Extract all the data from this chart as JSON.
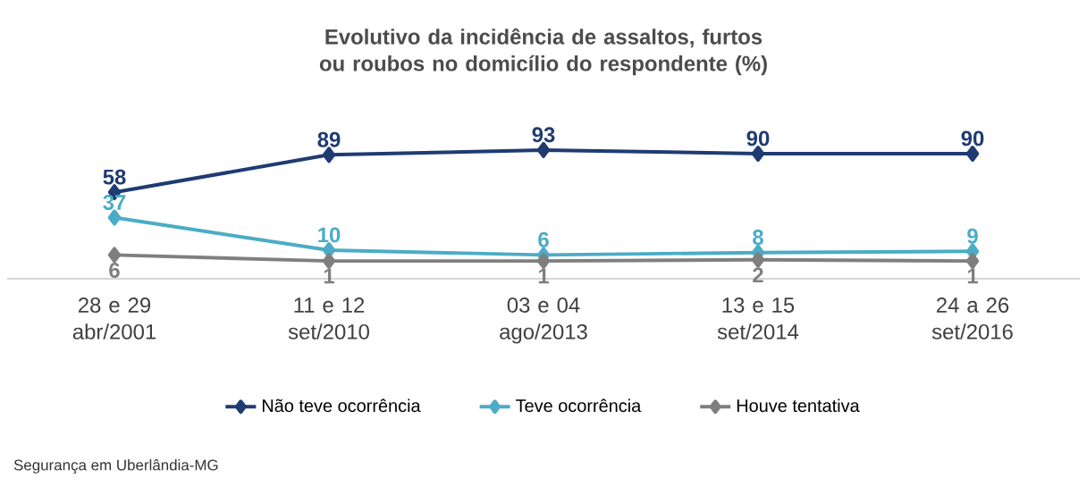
{
  "chart_data": {
    "type": "line",
    "title": "Evolutivo da incidência de assaltos, furtos ou roubos no domicílio do respondente (%)",
    "categories": [
      "28 e 29 abr/2001",
      "11 e 12 set/2010",
      "03 e 04 ago/2013",
      "13 e 15 set/2014",
      "24 a 26 set/2016"
    ],
    "series": [
      {
        "name": "Não teve ocorrência",
        "color": "#1f3b73",
        "values": [
          58,
          89,
          93,
          90,
          90
        ]
      },
      {
        "name": "Teve ocorrência",
        "color": "#4bacc6",
        "values": [
          37,
          10,
          6,
          8,
          9
        ]
      },
      {
        "name": "Houve tentativa",
        "color": "#7f7f7f",
        "values": [
          6,
          1,
          1,
          2,
          1
        ]
      }
    ],
    "data_labels": true,
    "legend": "bottom",
    "marker": "diamond",
    "line_style": "solid",
    "grid": false,
    "tick_labels": "x",
    "annotations": [
      "Segurança em Uberlândia-MG"
    ]
  }
}
